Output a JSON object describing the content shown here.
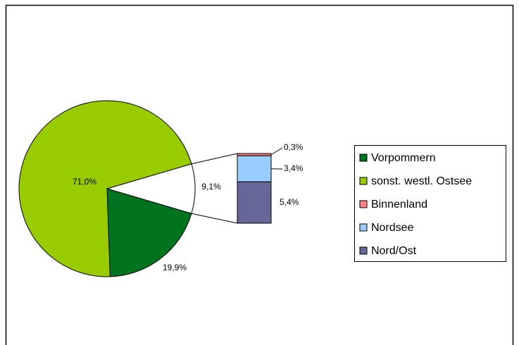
{
  "chart_data": {
    "type": "pie",
    "categories": [
      "Vorpommern",
      "sonst. westl. Ostsee",
      "Binnenland",
      "Nordsee",
      "Nord/Ost"
    ],
    "values": [
      19.9,
      71.0,
      0.3,
      3.4,
      5.4
    ],
    "value_labels": [
      "19,9%",
      "71,0%",
      "0,3%",
      "3,4%",
      "5,4%"
    ],
    "colors": [
      "#00731f",
      "#99cc00",
      "#ff8080",
      "#99ccff",
      "#666699"
    ],
    "secondary_count": 3,
    "other_value": 9.1,
    "other_label": "9,1%",
    "legend": "right"
  }
}
